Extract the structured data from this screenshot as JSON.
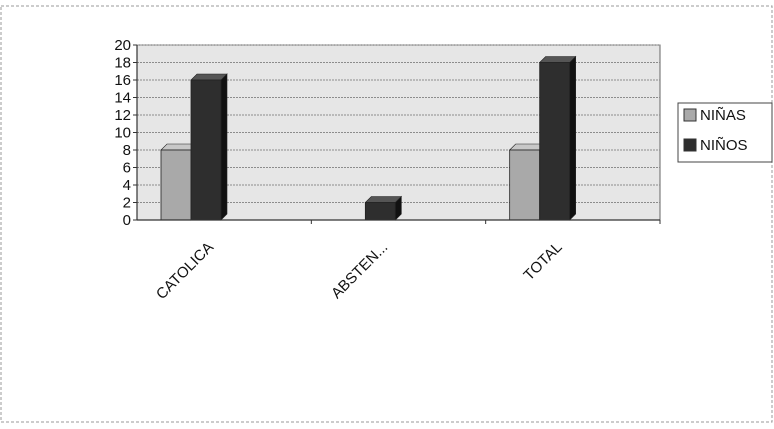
{
  "chart_data": {
    "type": "bar",
    "categories": [
      "CATOLICA",
      "ABSTEN...",
      "TOTAL"
    ],
    "series": [
      {
        "name": "NIÑAS",
        "values": [
          8,
          0,
          8
        ],
        "color": "#a9a9a9"
      },
      {
        "name": "NIÑOS",
        "values": [
          16,
          2,
          18
        ],
        "color": "#2e2e2e"
      }
    ],
    "yticks": [
      "0",
      "2",
      "4",
      "6",
      "8",
      "10",
      "12",
      "14",
      "16",
      "18",
      "20"
    ],
    "ylim": [
      0,
      20
    ],
    "grid": true,
    "legend_position": "right",
    "plot_background": "#e6e6e6",
    "grid_color": "#8c8c8c"
  }
}
